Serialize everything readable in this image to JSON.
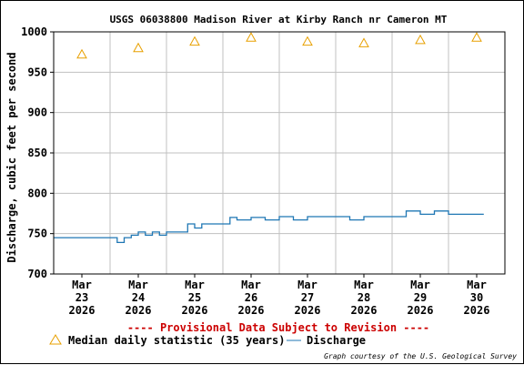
{
  "chart_data": {
    "type": "line",
    "title": "USGS 06038800 Madison River at Kirby Ranch nr Cameron MT",
    "ylabel": "Discharge, cubic feet per second",
    "xlabel": "",
    "ylim": [
      700,
      1000
    ],
    "xlim": [
      "2026-03-23 00:00",
      "2026-03-31 00:00"
    ],
    "y_ticks": [
      "1000",
      "950",
      "900",
      "850",
      "800",
      "750",
      "700"
    ],
    "x_ticks": [
      {
        "month": "Mar",
        "day": "23",
        "year": "2026"
      },
      {
        "month": "Mar",
        "day": "24",
        "year": "2026"
      },
      {
        "month": "Mar",
        "day": "25",
        "year": "2026"
      },
      {
        "month": "Mar",
        "day": "26",
        "year": "2026"
      },
      {
        "month": "Mar",
        "day": "27",
        "year": "2026"
      },
      {
        "month": "Mar",
        "day": "28",
        "year": "2026"
      },
      {
        "month": "Mar",
        "day": "29",
        "year": "2026"
      },
      {
        "month": "Mar",
        "day": "30",
        "year": "2026"
      }
    ],
    "grid": true,
    "legend_position": "bottom",
    "series": [
      {
        "name": "Median daily statistic (35 years)",
        "marker": "triangle",
        "color": "#e8a000",
        "x": [
          "2026-03-23 12:00",
          "2026-03-24 12:00",
          "2026-03-25 12:00",
          "2026-03-26 12:00",
          "2026-03-27 12:00",
          "2026-03-28 12:00",
          "2026-03-29 12:00",
          "2026-03-30 12:00"
        ],
        "values": [
          972,
          980,
          988,
          993,
          988,
          986,
          990,
          993
        ]
      },
      {
        "name": "Discharge",
        "marker": "line",
        "color": "#1f77b4",
        "x": [
          "2026-03-23 00:00",
          "2026-03-24 00:00",
          "2026-03-24 03:00",
          "2026-03-24 06:00",
          "2026-03-24 09:00",
          "2026-03-24 12:00",
          "2026-03-24 15:00",
          "2026-03-24 18:00",
          "2026-03-24 21:00",
          "2026-03-25 00:00",
          "2026-03-25 06:00",
          "2026-03-25 09:00",
          "2026-03-25 12:00",
          "2026-03-25 15:00",
          "2026-03-25 18:00",
          "2026-03-26 00:00",
          "2026-03-26 03:00",
          "2026-03-26 06:00",
          "2026-03-26 12:00",
          "2026-03-26 18:00",
          "2026-03-27 00:00",
          "2026-03-27 06:00",
          "2026-03-27 12:00",
          "2026-03-28 00:00",
          "2026-03-28 06:00",
          "2026-03-28 12:00",
          "2026-03-29 00:00",
          "2026-03-29 06:00",
          "2026-03-29 12:00",
          "2026-03-29 18:00",
          "2026-03-30 00:00",
          "2026-03-30 09:00"
        ],
        "values": [
          745,
          745,
          739,
          745,
          748,
          752,
          748,
          752,
          748,
          752,
          752,
          762,
          757,
          762,
          762,
          762,
          770,
          767,
          770,
          767,
          771,
          767,
          771,
          771,
          767,
          771,
          771,
          778,
          774,
          778,
          774,
          774
        ]
      }
    ]
  },
  "footer": {
    "provisional_notice": "---- Provisional Data Subject to Revision ----",
    "credit": "Graph courtesy of the U.S. Geological Survey"
  },
  "colors": {
    "median_marker": "#e8a000",
    "discharge_line": "#1f77b4",
    "provisional_text": "#cc0000",
    "grid": "#c0c0c0"
  }
}
